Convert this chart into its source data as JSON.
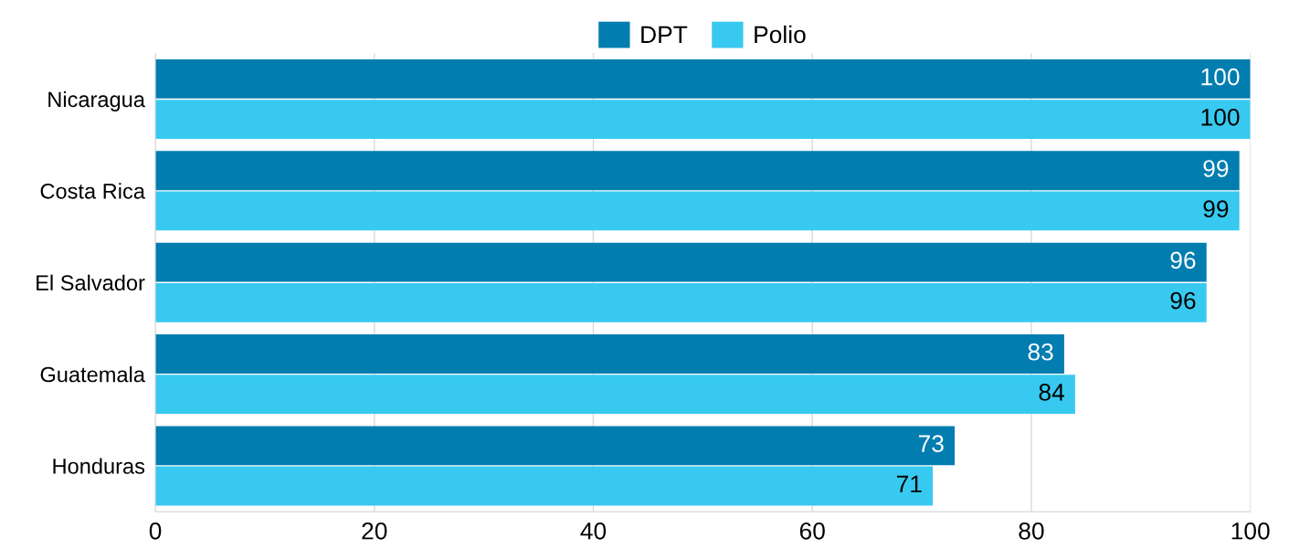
{
  "chart_data": {
    "type": "bar",
    "orientation": "horizontal",
    "categories": [
      "Nicaragua",
      "Costa Rica",
      "El Salvador",
      "Guatemala",
      "Honduras"
    ],
    "series": [
      {
        "name": "DPT",
        "color": "#027db0",
        "values": [
          100,
          99,
          96,
          83,
          73
        ]
      },
      {
        "name": "Polio",
        "color": "#38c9f0",
        "values": [
          100,
          99,
          96,
          84,
          71
        ]
      }
    ],
    "xlim": [
      0,
      100
    ],
    "xticks": [
      0,
      20,
      40,
      60,
      80,
      100
    ],
    "grid": "x",
    "legend": "top",
    "data_labels": true
  }
}
